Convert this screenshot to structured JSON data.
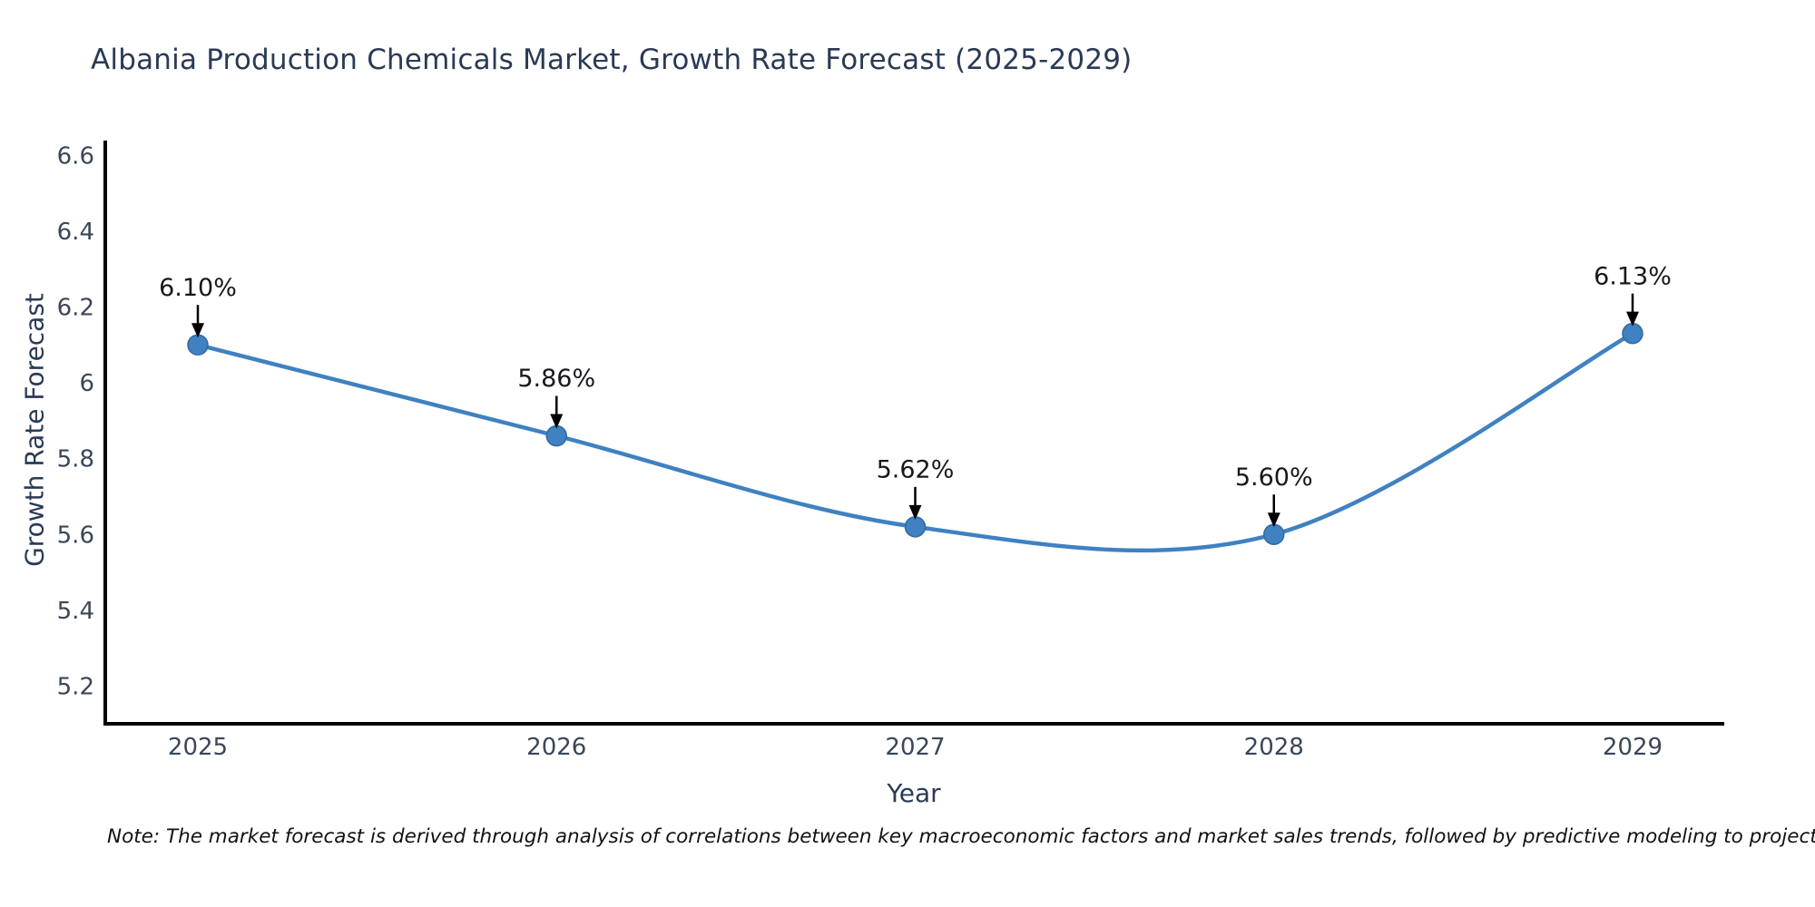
{
  "title": "Albania Production Chemicals Market, Growth Rate Forecast (2025-2029)",
  "note": "Note: The market forecast is derived through analysis of correlations between key macroeconomic factors and market sales trends, followed by predictive modeling to project future sales",
  "x_axis": {
    "title": "Year"
  },
  "y_axis": {
    "title": "Growth Rate Forecast"
  },
  "colors": {
    "line": "#3f81c1",
    "marker_fill": "#3f81c1",
    "marker_edge": "#2f6ba3",
    "axis": "#000000",
    "tick_label": "#3b4657",
    "annotation_text": "#16181d",
    "arrow": "#000000",
    "title_text": "#2a3a55"
  },
  "chart_data": {
    "type": "line",
    "title": "Albania Production Chemicals Market, Growth Rate Forecast (2025-2029)",
    "xlabel": "Year",
    "ylabel": "Growth Rate Forecast",
    "x": [
      2025,
      2026,
      2027,
      2028,
      2029
    ],
    "values": [
      6.1,
      5.86,
      5.62,
      5.6,
      6.13
    ],
    "point_labels": [
      "6.10%",
      "5.86%",
      "5.62%",
      "5.60%",
      "6.13%"
    ],
    "yticks": [
      5.2,
      5.4,
      5.6,
      5.8,
      6,
      6.2,
      6.4,
      6.6
    ],
    "ylim": [
      5.07,
      6.71
    ],
    "line_shape": "spline",
    "markers": true,
    "grid": false,
    "legend": "none",
    "annotations": "value labels with down arrows above each point"
  }
}
